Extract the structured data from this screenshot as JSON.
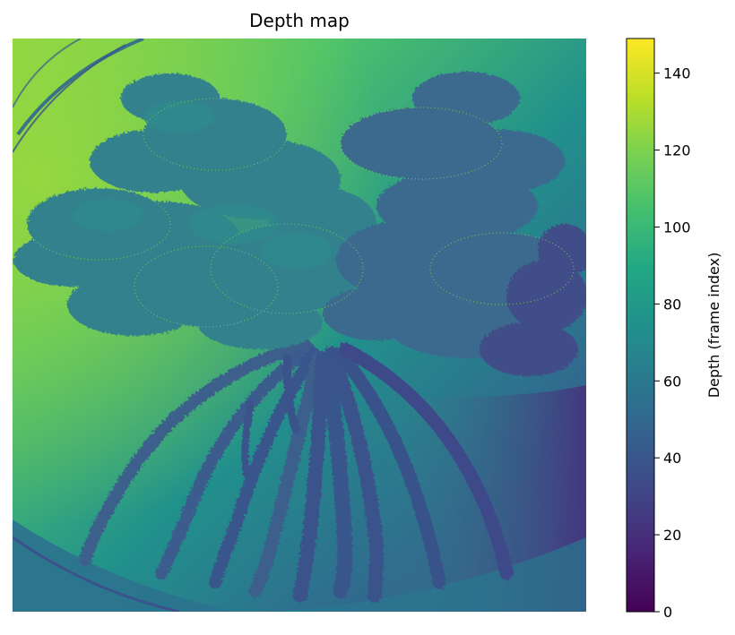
{
  "chart_data": {
    "type": "heatmap",
    "title": "Depth map",
    "colormap": "viridis",
    "colorbar": {
      "label": "Depth (frame index)",
      "min": 0,
      "max": 149,
      "ticks": [
        0,
        20,
        40,
        60,
        80,
        100,
        120,
        140
      ],
      "tick_labels": [
        "0",
        "20",
        "40",
        "60",
        "80",
        "100",
        "120",
        "140"
      ]
    },
    "axes_visible": false,
    "image_description_values": {
      "background_range": [
        20,
        125
      ],
      "plant_range": [
        20,
        75
      ],
      "subject": "mangrove-like plant with canopy of leaves and arching prop roots"
    }
  }
}
